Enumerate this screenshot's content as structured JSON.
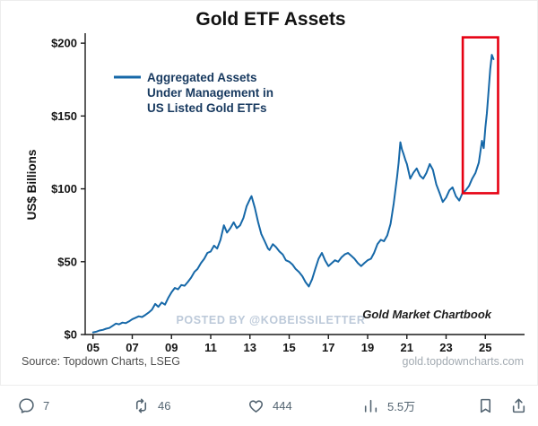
{
  "post": {
    "actions": {
      "reply_count": "7",
      "repost_count": "46",
      "like_count": "444",
      "view_count": "5.5万"
    }
  },
  "chart_data": {
    "type": "line",
    "title": "Gold ETF Assets",
    "ylabel": "US$ Billions",
    "legend": [
      "Aggregated Assets",
      "Under Management in",
      "US Listed Gold ETFs"
    ],
    "watermark": "POSTED BY @KOBEISSILETTER",
    "branding": "Gold Market Chartbook",
    "source": "Source: Topdown Charts, LSEG",
    "url": "gold.topdowncharts.com",
    "line_color": "#1668a8",
    "highlight_box": {
      "x0": 2023.85,
      "x1": 2025.65,
      "y0": 97,
      "y1": 204,
      "color": "#e60012"
    },
    "xlim": [
      2004.6,
      2027.0
    ],
    "ylim": [
      0,
      205
    ],
    "x_ticks": {
      "values": [
        2005,
        2007,
        2009,
        2011,
        2013,
        2015,
        2017,
        2019,
        2021,
        2023,
        2025
      ],
      "labels": [
        "05",
        "07",
        "09",
        "11",
        "13",
        "15",
        "17",
        "19",
        "21",
        "23",
        "25"
      ]
    },
    "y_ticks": {
      "values": [
        0,
        50,
        100,
        150,
        200
      ],
      "labels": [
        "$0",
        "$50",
        "$100",
        "$150",
        "$200"
      ]
    },
    "legend_position": "upper-left",
    "grid": false,
    "series": [
      {
        "name": "Aggregated Assets Under Management in US Listed Gold ETFs",
        "points": [
          [
            2005.0,
            1.5
          ],
          [
            2005.17,
            2
          ],
          [
            2005.33,
            2.8
          ],
          [
            2005.5,
            3.2
          ],
          [
            2005.67,
            4
          ],
          [
            2005.83,
            4.5
          ],
          [
            2006.0,
            6
          ],
          [
            2006.17,
            7.5
          ],
          [
            2006.33,
            7
          ],
          [
            2006.5,
            8.2
          ],
          [
            2006.67,
            7.8
          ],
          [
            2006.83,
            9
          ],
          [
            2007.0,
            10.5
          ],
          [
            2007.17,
            11.5
          ],
          [
            2007.33,
            12.5
          ],
          [
            2007.5,
            12
          ],
          [
            2007.67,
            13.5
          ],
          [
            2007.83,
            15
          ],
          [
            2008.0,
            17
          ],
          [
            2008.17,
            21
          ],
          [
            2008.33,
            19
          ],
          [
            2008.5,
            22
          ],
          [
            2008.67,
            20.5
          ],
          [
            2008.83,
            25
          ],
          [
            2009.0,
            29
          ],
          [
            2009.17,
            32
          ],
          [
            2009.33,
            31
          ],
          [
            2009.5,
            34
          ],
          [
            2009.67,
            33.5
          ],
          [
            2009.83,
            36
          ],
          [
            2010.0,
            39
          ],
          [
            2010.17,
            43
          ],
          [
            2010.33,
            45
          ],
          [
            2010.5,
            49
          ],
          [
            2010.67,
            52
          ],
          [
            2010.83,
            56
          ],
          [
            2011.0,
            57
          ],
          [
            2011.17,
            61
          ],
          [
            2011.33,
            59
          ],
          [
            2011.5,
            65
          ],
          [
            2011.67,
            75
          ],
          [
            2011.83,
            70
          ],
          [
            2012.0,
            73
          ],
          [
            2012.17,
            77
          ],
          [
            2012.33,
            73
          ],
          [
            2012.5,
            75
          ],
          [
            2012.67,
            80
          ],
          [
            2012.83,
            88
          ],
          [
            2013.0,
            93
          ],
          [
            2013.08,
            95
          ],
          [
            2013.25,
            87
          ],
          [
            2013.42,
            77
          ],
          [
            2013.58,
            69
          ],
          [
            2013.75,
            64
          ],
          [
            2013.92,
            59
          ],
          [
            2014.0,
            58
          ],
          [
            2014.17,
            62
          ],
          [
            2014.33,
            60
          ],
          [
            2014.5,
            57
          ],
          [
            2014.67,
            55
          ],
          [
            2014.83,
            51
          ],
          [
            2015.0,
            50
          ],
          [
            2015.17,
            48
          ],
          [
            2015.33,
            45
          ],
          [
            2015.5,
            43
          ],
          [
            2015.67,
            40
          ],
          [
            2015.83,
            36
          ],
          [
            2016.0,
            33
          ],
          [
            2016.17,
            38
          ],
          [
            2016.33,
            45
          ],
          [
            2016.5,
            52
          ],
          [
            2016.67,
            56
          ],
          [
            2016.83,
            51
          ],
          [
            2017.0,
            47
          ],
          [
            2017.17,
            49
          ],
          [
            2017.33,
            51
          ],
          [
            2017.5,
            50
          ],
          [
            2017.67,
            53
          ],
          [
            2017.83,
            55
          ],
          [
            2018.0,
            56
          ],
          [
            2018.17,
            54
          ],
          [
            2018.33,
            52
          ],
          [
            2018.5,
            49
          ],
          [
            2018.67,
            47
          ],
          [
            2018.83,
            49
          ],
          [
            2019.0,
            51
          ],
          [
            2019.17,
            52
          ],
          [
            2019.33,
            56
          ],
          [
            2019.5,
            62
          ],
          [
            2019.67,
            65
          ],
          [
            2019.83,
            64
          ],
          [
            2020.0,
            68
          ],
          [
            2020.17,
            76
          ],
          [
            2020.33,
            90
          ],
          [
            2020.5,
            108
          ],
          [
            2020.58,
            118
          ],
          [
            2020.67,
            132
          ],
          [
            2020.75,
            127
          ],
          [
            2020.83,
            124
          ],
          [
            2020.92,
            120
          ],
          [
            2021.0,
            117
          ],
          [
            2021.17,
            107
          ],
          [
            2021.33,
            111
          ],
          [
            2021.5,
            114
          ],
          [
            2021.67,
            109
          ],
          [
            2021.83,
            107
          ],
          [
            2022.0,
            111
          ],
          [
            2022.17,
            117
          ],
          [
            2022.33,
            113
          ],
          [
            2022.5,
            103
          ],
          [
            2022.67,
            97
          ],
          [
            2022.83,
            91
          ],
          [
            2023.0,
            94
          ],
          [
            2023.17,
            99
          ],
          [
            2023.33,
            101
          ],
          [
            2023.5,
            95
          ],
          [
            2023.67,
            92
          ],
          [
            2023.83,
            97
          ],
          [
            2024.0,
            99
          ],
          [
            2024.17,
            102
          ],
          [
            2024.33,
            107
          ],
          [
            2024.5,
            111
          ],
          [
            2024.67,
            118
          ],
          [
            2024.83,
            133
          ],
          [
            2024.92,
            128
          ],
          [
            2025.0,
            142
          ],
          [
            2025.08,
            152
          ],
          [
            2025.17,
            168
          ],
          [
            2025.25,
            182
          ],
          [
            2025.33,
            192
          ],
          [
            2025.42,
            189
          ]
        ]
      }
    ]
  }
}
